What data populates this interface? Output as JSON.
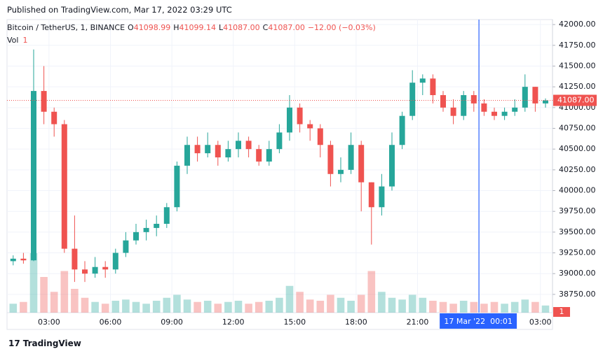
{
  "chart_data": {
    "type": "candlestick",
    "published": "Published on TradingView.com, Mar 17, 2022 03:29 UTC",
    "symbol": "Bitcoin / TetherUS, 1, BINANCE",
    "ohlc_legend": [
      {
        "key": "O",
        "value": "41098.99"
      },
      {
        "key": "H",
        "value": "41099.14"
      },
      {
        "key": "L",
        "value": "41087.00"
      },
      {
        "key": "C",
        "value": "41087.00"
      }
    ],
    "change": "−12.00 (−0.03%)",
    "volume_legend": {
      "name": "Vol",
      "value": 1
    },
    "last_price": {
      "value": 41087,
      "label": "41087.00"
    },
    "crosshair": {
      "x": "00:00",
      "label": "17 Mar '22  00:01"
    },
    "brand": "TradingView",
    "up_color": "#26a69a",
    "down_color": "#ef5350",
    "x": [
      "01:00",
      "01:30",
      "02:00",
      "02:30",
      "03:00",
      "03:30",
      "04:00",
      "04:30",
      "05:00",
      "05:30",
      "06:00",
      "06:30",
      "07:00",
      "07:30",
      "08:00",
      "08:30",
      "09:00",
      "09:30",
      "10:00",
      "10:30",
      "11:00",
      "11:30",
      "12:00",
      "12:30",
      "13:00",
      "13:30",
      "14:00",
      "14:30",
      "15:00",
      "15:30",
      "16:00",
      "16:30",
      "17:00",
      "17:30",
      "18:00",
      "18:30",
      "19:00",
      "19:30",
      "20:00",
      "20:30",
      "21:00",
      "21:30",
      "22:00",
      "22:30",
      "23:00",
      "23:30",
      "00:00",
      "00:30",
      "01:00",
      "01:30",
      "02:00",
      "02:30",
      "03:00"
    ],
    "open": [
      39150,
      39180,
      39160,
      41200,
      40950,
      40800,
      39300,
      39050,
      39000,
      39080,
      39050,
      39250,
      39400,
      39500,
      39550,
      39600,
      39800,
      40300,
      40550,
      40450,
      40550,
      40400,
      40500,
      40600,
      40500,
      40350,
      40500,
      40700,
      41000,
      40800,
      40750,
      40550,
      40200,
      40250,
      40550,
      40100,
      39800,
      40050,
      40550,
      40900,
      41300,
      41350,
      41150,
      41000,
      40900,
      41150,
      41050,
      40950,
      40900,
      40950,
      41000,
      41250,
      41050
    ],
    "high": [
      39220,
      39250,
      41700,
      41500,
      41000,
      40850,
      39700,
      39150,
      39200,
      39150,
      39300,
      39500,
      39600,
      39650,
      39700,
      39850,
      40350,
      40650,
      40650,
      40700,
      40600,
      40600,
      40700,
      40650,
      40550,
      40600,
      40800,
      41150,
      41050,
      40850,
      40800,
      40600,
      40400,
      40700,
      40600,
      40100,
      40200,
      40700,
      40950,
      41450,
      41400,
      41400,
      41200,
      41100,
      41200,
      41200,
      41100,
      41000,
      41000,
      41100,
      41400,
      41250,
      41110
    ],
    "low": [
      39100,
      39120,
      39150,
      40800,
      40650,
      39250,
      38900,
      38900,
      38950,
      38950,
      39000,
      39200,
      39350,
      39400,
      39450,
      39550,
      39750,
      40200,
      40350,
      40400,
      40300,
      40350,
      40400,
      40400,
      40300,
      40300,
      40450,
      40600,
      40700,
      40600,
      40400,
      40050,
      40100,
      40200,
      39750,
      39350,
      39700,
      40000,
      40500,
      40850,
      41150,
      41050,
      40950,
      40800,
      40850,
      40950,
      40900,
      40850,
      40850,
      40900,
      40950,
      40950,
      41000
    ],
    "close": [
      39180,
      39160,
      41200,
      40950,
      40800,
      39300,
      39050,
      39000,
      39080,
      39050,
      39250,
      39400,
      39500,
      39550,
      39600,
      39800,
      40300,
      40550,
      40450,
      40550,
      40400,
      40500,
      40600,
      40500,
      40350,
      40500,
      40700,
      41000,
      40800,
      40750,
      40550,
      40200,
      40250,
      40550,
      40100,
      39800,
      40050,
      40550,
      40900,
      41300,
      41350,
      41150,
      41000,
      40900,
      41150,
      41050,
      40950,
      40900,
      40950,
      41000,
      41250,
      41050,
      41087
    ],
    "volume": [
      15,
      18,
      100,
      60,
      35,
      70,
      40,
      25,
      18,
      15,
      20,
      22,
      18,
      15,
      20,
      25,
      30,
      22,
      18,
      20,
      15,
      18,
      20,
      15,
      18,
      20,
      25,
      45,
      35,
      22,
      20,
      30,
      25,
      20,
      30,
      70,
      35,
      25,
      22,
      30,
      25,
      20,
      18,
      15,
      20,
      18,
      15,
      18,
      15,
      18,
      22,
      18,
      12
    ],
    "ylim": [
      38530,
      42060
    ],
    "yticks": [
      {
        "value": 38750,
        "label": "38750.00"
      },
      {
        "value": 39000,
        "label": "39000.00"
      },
      {
        "value": 39250,
        "label": "39250.00"
      },
      {
        "value": 39500,
        "label": "39500.00"
      },
      {
        "value": 39750,
        "label": "39750.00"
      },
      {
        "value": 40000,
        "label": "40000.00"
      },
      {
        "value": 40250,
        "label": "40250.00"
      },
      {
        "value": 40500,
        "label": "40500.00"
      },
      {
        "value": 40750,
        "label": "40750.00"
      },
      {
        "value": 41000,
        "label": "41000.00"
      },
      {
        "value": 41250,
        "label": "41250.00"
      },
      {
        "value": 41500,
        "label": "41500.00"
      },
      {
        "value": 41750,
        "label": "41750.00"
      },
      {
        "value": 42000,
        "label": "42000.00"
      }
    ],
    "xticks": [
      "03:00",
      "06:00",
      "09:00",
      "12:00",
      "15:00",
      "18:00",
      "21:00",
      "03:00"
    ],
    "grid": true
  }
}
